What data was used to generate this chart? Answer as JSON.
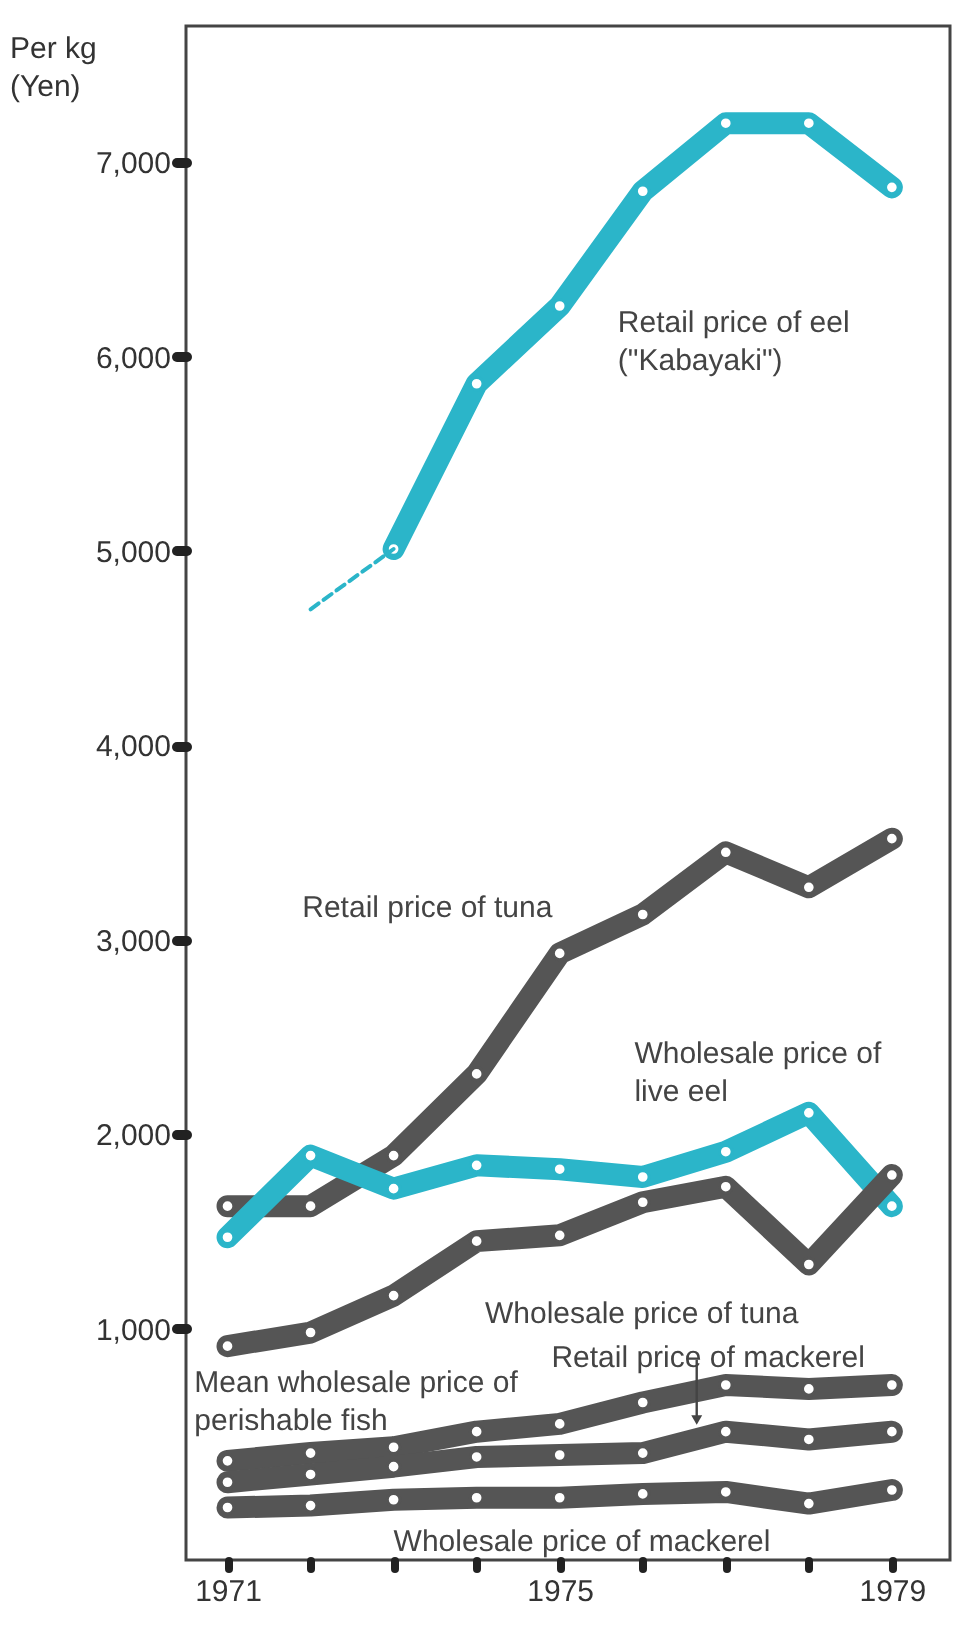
{
  "chart_data": {
    "type": "line",
    "ylabel": "Per kg (Yen)",
    "x": [
      1971,
      1972,
      1973,
      1974,
      1975,
      1976,
      1977,
      1978,
      1979
    ],
    "xlim": [
      1970.5,
      1979.7
    ],
    "xticks": [
      1971,
      {
        "value": 1972,
        "label": null
      },
      {
        "value": 1973,
        "label": null
      },
      {
        "value": 1974,
        "label": null
      },
      1975,
      {
        "value": 1976,
        "label": null
      },
      {
        "value": 1977,
        "label": null
      },
      {
        "value": 1978,
        "label": null
      },
      1979
    ],
    "ylim": [
      -190,
      7700
    ],
    "yticks": [
      {
        "value": 1000,
        "label": "1,000"
      },
      {
        "value": 2000,
        "label": "2,000"
      },
      {
        "value": 3000,
        "label": "3,000"
      },
      {
        "value": 4000,
        "label": "4,000"
      },
      {
        "value": 5000,
        "label": "5,000"
      },
      {
        "value": 6000,
        "label": "6,000"
      },
      {
        "value": 7000,
        "label": "7,000"
      }
    ],
    "grid": false,
    "marker": "circle",
    "line_style": "solid",
    "series": [
      {
        "name": "Retail price of eel (\"Kabayaki\")",
        "color": "#2bb5c9",
        "values": [
          null,
          null,
          5010,
          5860,
          6260,
          6850,
          7200,
          7200,
          6870
        ]
      },
      {
        "color": "#2bb5c9",
        "line_style": "dashed",
        "marker": "none",
        "values": [
          null,
          4700,
          5010,
          null,
          null,
          null,
          null,
          null,
          null
        ]
      },
      {
        "name": "Retail price of tuna",
        "color": "#555555",
        "values": [
          1630,
          1630,
          1890,
          2310,
          2930,
          3130,
          3450,
          3270,
          3520
        ]
      },
      {
        "name": "Wholesale price of live eel",
        "color": "#2bb5c9",
        "values": [
          1470,
          1890,
          1720,
          1840,
          1820,
          1780,
          1910,
          2110,
          1630
        ]
      },
      {
        "name": "Wholesale price of tuna",
        "color": "#555555",
        "values": [
          910,
          980,
          1170,
          1450,
          1480,
          1650,
          1730,
          1330,
          1790
        ]
      },
      {
        "name": "Mean wholesale price of perishable fish",
        "color": "#555555",
        "values": [
          320,
          360,
          390,
          470,
          510,
          620,
          710,
          690,
          710
        ]
      },
      {
        "name": "Retail price of mackerel",
        "color": "#555555",
        "values": [
          210,
          250,
          290,
          340,
          350,
          360,
          470,
          430,
          470
        ]
      },
      {
        "name": "Wholesale price of mackerel",
        "color": "#555555",
        "values": [
          80,
          90,
          120,
          130,
          130,
          150,
          160,
          100,
          170
        ]
      }
    ]
  }
}
